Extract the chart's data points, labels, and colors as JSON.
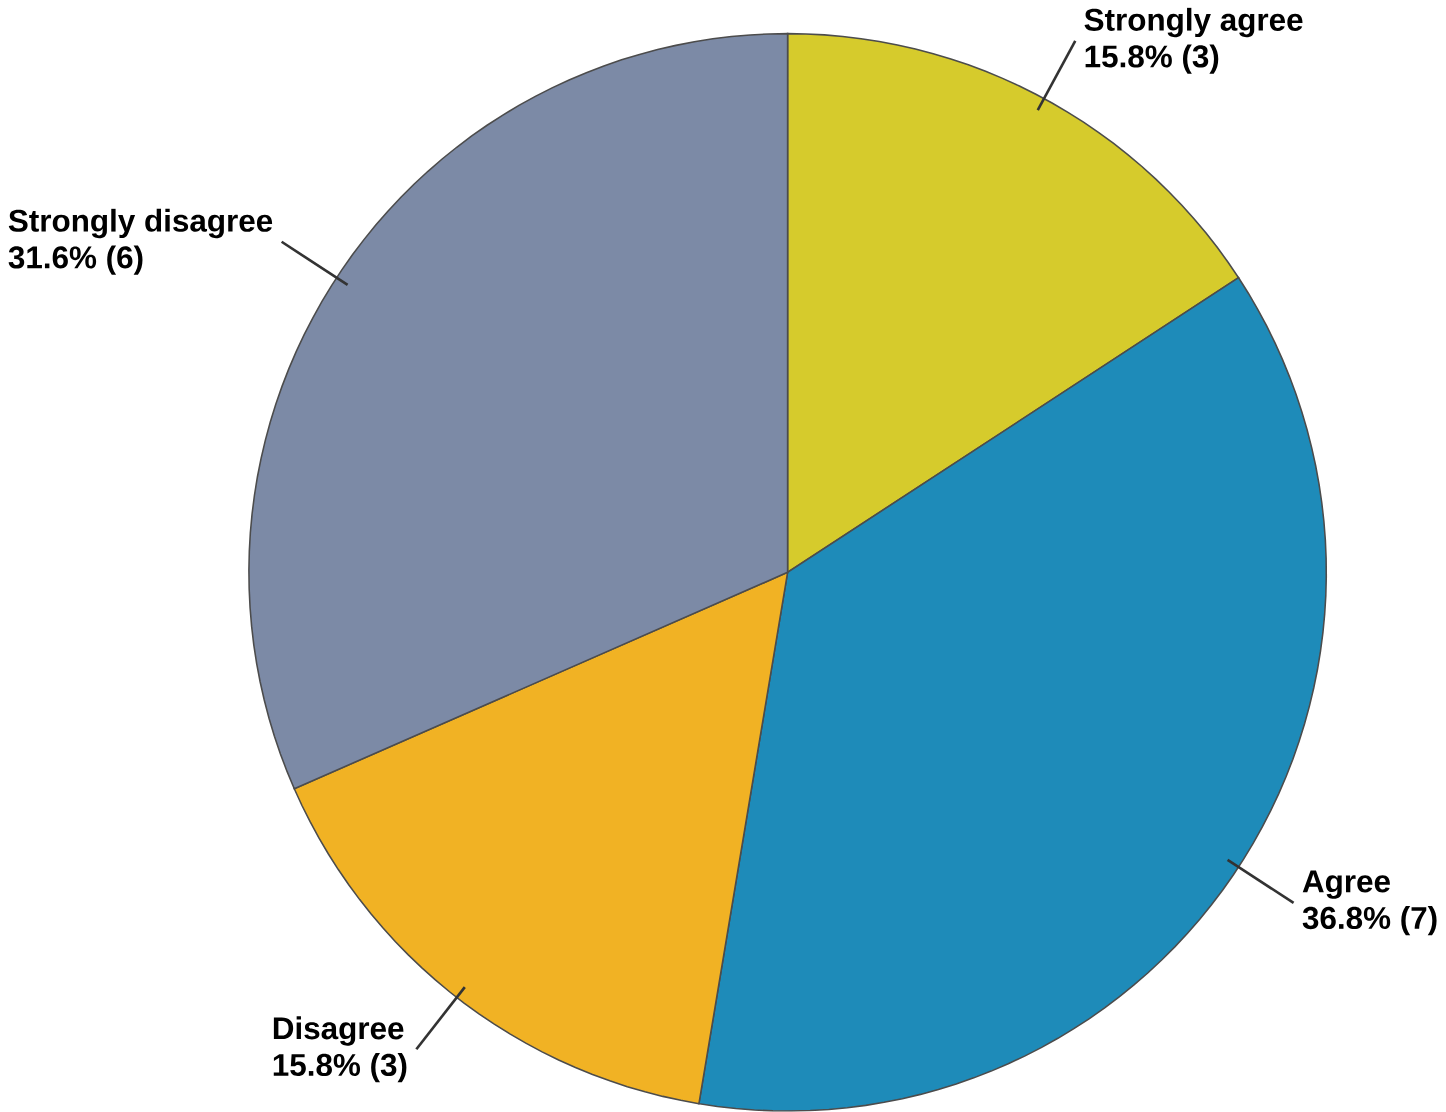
{
  "chart_data": {
    "type": "pie",
    "categories": [
      "Strongly agree",
      "Agree",
      "Disagree",
      "Strongly disagree"
    ],
    "values": [
      3,
      7,
      3,
      6
    ],
    "value_labels": [
      "15.8% (3)",
      "36.8% (7)",
      "15.8% (3)",
      "31.6% (6)"
    ],
    "colors": [
      "#d6cb2c",
      "#1e8bb9",
      "#f1b224",
      "#7c8aa6"
    ]
  }
}
